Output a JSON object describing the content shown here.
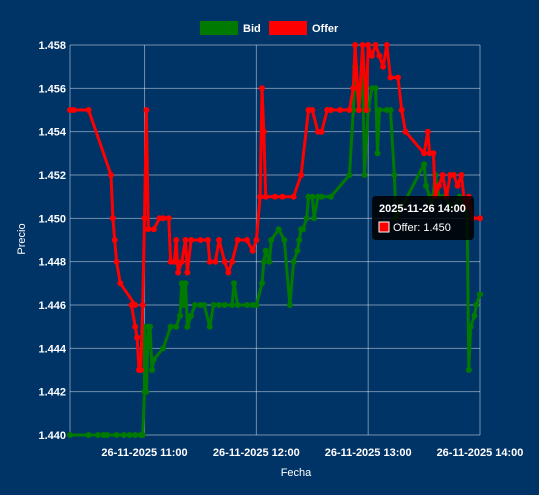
{
  "chart_data": {
    "type": "line",
    "title": "",
    "xlabel": "Fecha",
    "ylabel": "Precio",
    "ylim": [
      1.44,
      1.458
    ],
    "xlim": [
      "2025-11-26 10:20",
      "2025-11-26 14:00"
    ],
    "y_ticks": [
      "1.440",
      "1.442",
      "1.444",
      "1.446",
      "1.448",
      "1.450",
      "1.452",
      "1.454",
      "1.456",
      "1.458"
    ],
    "x_ticks": [
      {
        "t": "2025-11-26 11:00",
        "label": "26-11-2025 11:00"
      },
      {
        "t": "2025-11-26 12:00",
        "label": "26-11-2025 12:00"
      },
      {
        "t": "2025-11-26 13:00",
        "label": "26-11-2025 13:00"
      },
      {
        "t": "2025-11-26 14:00",
        "label": "26-11-2025 14:00"
      }
    ],
    "grid": true,
    "legend_position": "top-center",
    "series": [
      {
        "name": "Bid",
        "color": "#007a00",
        "points": [
          [
            "2025-11-26 10:20",
            1.44
          ],
          [
            "2025-11-26 10:30",
            1.44
          ],
          [
            "2025-11-26 10:35",
            1.44
          ],
          [
            "2025-11-26 10:38",
            1.44
          ],
          [
            "2025-11-26 10:40",
            1.44
          ],
          [
            "2025-11-26 10:45",
            1.44
          ],
          [
            "2025-11-26 10:49",
            1.44
          ],
          [
            "2025-11-26 10:52",
            1.44
          ],
          [
            "2025-11-26 10:55",
            1.44
          ],
          [
            "2025-11-26 10:58",
            1.44
          ],
          [
            "2025-11-26 10:59",
            1.44
          ],
          [
            "2025-11-26 11:00",
            1.442
          ],
          [
            "2025-11-26 11:00",
            1.445
          ],
          [
            "2025-11-26 11:01",
            1.442
          ],
          [
            "2025-11-26 11:02",
            1.445
          ],
          [
            "2025-11-26 11:03",
            1.445
          ],
          [
            "2025-11-26 11:04",
            1.443
          ],
          [
            "2025-11-26 11:05",
            1.4435
          ],
          [
            "2025-11-26 11:10",
            1.444
          ],
          [
            "2025-11-26 11:14",
            1.445
          ],
          [
            "2025-11-26 11:17",
            1.445
          ],
          [
            "2025-11-26 11:19",
            1.4455
          ],
          [
            "2025-11-26 11:20",
            1.447
          ],
          [
            "2025-11-26 11:21",
            1.446
          ],
          [
            "2025-11-26 11:22",
            1.447
          ],
          [
            "2025-11-26 11:23",
            1.445
          ],
          [
            "2025-11-26 11:25",
            1.4455
          ],
          [
            "2025-11-26 11:27",
            1.446
          ],
          [
            "2025-11-26 11:30",
            1.446
          ],
          [
            "2025-11-26 11:32",
            1.446
          ],
          [
            "2025-11-26 11:35",
            1.445
          ],
          [
            "2025-11-26 11:37",
            1.446
          ],
          [
            "2025-11-26 11:40",
            1.446
          ],
          [
            "2025-11-26 11:43",
            1.446
          ],
          [
            "2025-11-26 11:47",
            1.446
          ],
          [
            "2025-11-26 11:48",
            1.447
          ],
          [
            "2025-11-26 11:50",
            1.446
          ],
          [
            "2025-11-26 11:55",
            1.446
          ],
          [
            "2025-11-26 11:58",
            1.446
          ],
          [
            "2025-11-26 12:00",
            1.446
          ],
          [
            "2025-11-26 12:03",
            1.447
          ],
          [
            "2025-11-26 12:04",
            1.448
          ],
          [
            "2025-11-26 12:05",
            1.4485
          ],
          [
            "2025-11-26 12:07",
            1.448
          ],
          [
            "2025-11-26 12:08",
            1.449
          ],
          [
            "2025-11-26 12:12",
            1.4495
          ],
          [
            "2025-11-26 12:15",
            1.449
          ],
          [
            "2025-11-26 12:18",
            1.446
          ],
          [
            "2025-11-26 12:20",
            1.448
          ],
          [
            "2025-11-26 12:22",
            1.4485
          ],
          [
            "2025-11-26 12:23",
            1.449
          ],
          [
            "2025-11-26 12:24",
            1.4495
          ],
          [
            "2025-11-26 12:25",
            1.4495
          ],
          [
            "2025-11-26 12:27",
            1.45
          ],
          [
            "2025-11-26 12:28",
            1.451
          ],
          [
            "2025-11-26 12:30",
            1.451
          ],
          [
            "2025-11-26 12:31",
            1.45
          ],
          [
            "2025-11-26 12:33",
            1.451
          ],
          [
            "2025-11-26 12:35",
            1.451
          ],
          [
            "2025-11-26 12:40",
            1.451
          ],
          [
            "2025-11-26 12:50",
            1.452
          ],
          [
            "2025-11-26 12:52",
            1.455
          ],
          [
            "2025-11-26 12:53",
            1.457
          ],
          [
            "2025-11-26 12:55",
            1.455
          ],
          [
            "2025-11-26 12:57",
            1.457
          ],
          [
            "2025-11-26 12:58",
            1.452
          ],
          [
            "2025-11-26 13:00",
            1.455
          ],
          [
            "2025-11-26 13:02",
            1.456
          ],
          [
            "2025-11-26 13:04",
            1.456
          ],
          [
            "2025-11-26 13:05",
            1.453
          ],
          [
            "2025-11-26 13:06",
            1.455
          ],
          [
            "2025-11-26 13:10",
            1.455
          ],
          [
            "2025-11-26 13:12",
            1.455
          ],
          [
            "2025-11-26 13:14",
            1.452
          ],
          [
            "2025-11-26 13:15",
            1.45
          ],
          [
            "2025-11-26 13:30",
            1.4525
          ],
          [
            "2025-11-26 13:31",
            1.4515
          ],
          [
            "2025-11-26 13:33",
            1.451
          ],
          [
            "2025-11-26 13:34",
            1.4505
          ],
          [
            "2025-11-26 13:36",
            1.452
          ],
          [
            "2025-11-26 13:38",
            1.451
          ],
          [
            "2025-11-26 13:41",
            1.451
          ],
          [
            "2025-11-26 13:45",
            1.4505
          ],
          [
            "2025-11-26 13:49",
            1.451
          ],
          [
            "2025-11-26 13:51",
            1.4505
          ],
          [
            "2025-11-26 13:53",
            1.4505
          ],
          [
            "2025-11-26 13:54",
            1.443
          ],
          [
            "2025-11-26 13:55",
            1.445
          ],
          [
            "2025-11-26 13:57",
            1.4455
          ],
          [
            "2025-11-26 13:58",
            1.446
          ],
          [
            "2025-11-26 14:00",
            1.4465
          ]
        ]
      },
      {
        "name": "Offer",
        "color": "#ff0000",
        "points": [
          [
            "2025-11-26 10:20",
            1.455
          ],
          [
            "2025-11-26 10:22",
            1.455
          ],
          [
            "2025-11-26 10:30",
            1.455
          ],
          [
            "2025-11-26 10:42",
            1.452
          ],
          [
            "2025-11-26 10:43",
            1.45
          ],
          [
            "2025-11-26 10:44",
            1.449
          ],
          [
            "2025-11-26 10:45",
            1.448
          ],
          [
            "2025-11-26 10:47",
            1.447
          ],
          [
            "2025-11-26 10:55",
            1.446
          ],
          [
            "2025-11-26 10:53",
            1.446
          ],
          [
            "2025-11-26 10:55",
            1.445
          ],
          [
            "2025-11-26 10:56",
            1.4445
          ],
          [
            "2025-11-26 10:57",
            1.443
          ],
          [
            "2025-11-26 10:58",
            1.443
          ],
          [
            "2025-11-26 10:59",
            1.446
          ],
          [
            "2025-11-26 11:00",
            1.45
          ],
          [
            "2025-11-26 11:01",
            1.455
          ],
          [
            "2025-11-26 11:02",
            1.4495
          ],
          [
            "2025-11-26 11:05",
            1.4495
          ],
          [
            "2025-11-26 11:08",
            1.45
          ],
          [
            "2025-11-26 11:10",
            1.45
          ],
          [
            "2025-11-26 11:13",
            1.45
          ],
          [
            "2025-11-26 11:14",
            1.448
          ],
          [
            "2025-11-26 11:16",
            1.448
          ],
          [
            "2025-11-26 11:17",
            1.449
          ],
          [
            "2025-11-26 11:18",
            1.4475
          ],
          [
            "2025-11-26 11:20",
            1.448
          ],
          [
            "2025-11-26 11:22",
            1.449
          ],
          [
            "2025-11-26 11:23",
            1.4475
          ],
          [
            "2025-11-26 11:25",
            1.449
          ],
          [
            "2025-11-26 11:30",
            1.449
          ],
          [
            "2025-11-26 11:34",
            1.449
          ],
          [
            "2025-11-26 11:35",
            1.448
          ],
          [
            "2025-11-26 11:38",
            1.448
          ],
          [
            "2025-11-26 11:40",
            1.449
          ],
          [
            "2025-11-26 11:43",
            1.448
          ],
          [
            "2025-11-26 11:45",
            1.4475
          ],
          [
            "2025-11-26 11:47",
            1.448
          ],
          [
            "2025-11-26 11:50",
            1.449
          ],
          [
            "2025-11-26 11:55",
            1.449
          ],
          [
            "2025-11-26 11:58",
            1.4485
          ],
          [
            "2025-11-26 12:00",
            1.449
          ],
          [
            "2025-11-26 12:02",
            1.451
          ],
          [
            "2025-11-26 12:03",
            1.456
          ],
          [
            "2025-11-26 12:04",
            1.454
          ],
          [
            "2025-11-26 12:05",
            1.451
          ],
          [
            "2025-11-26 12:10",
            1.451
          ],
          [
            "2025-11-26 12:14",
            1.451
          ],
          [
            "2025-11-26 12:20",
            1.451
          ],
          [
            "2025-11-26 12:24",
            1.452
          ],
          [
            "2025-11-26 12:28",
            1.455
          ],
          [
            "2025-11-26 12:30",
            1.455
          ],
          [
            "2025-11-26 12:33",
            1.454
          ],
          [
            "2025-11-26 12:35",
            1.454
          ],
          [
            "2025-11-26 12:38",
            1.455
          ],
          [
            "2025-11-26 12:40",
            1.455
          ],
          [
            "2025-11-26 12:45",
            1.455
          ],
          [
            "2025-11-26 12:50",
            1.455
          ],
          [
            "2025-11-26 12:52",
            1.456
          ],
          [
            "2025-11-26 12:53",
            1.458
          ],
          [
            "2025-11-26 12:55",
            1.455
          ],
          [
            "2025-11-26 12:57",
            1.458
          ],
          [
            "2025-11-26 12:59",
            1.455
          ],
          [
            "2025-11-26 13:00",
            1.458
          ],
          [
            "2025-11-26 13:02",
            1.4575
          ],
          [
            "2025-11-26 13:04",
            1.458
          ],
          [
            "2025-11-26 13:06",
            1.4575
          ],
          [
            "2025-11-26 13:08",
            1.457
          ],
          [
            "2025-11-26 13:10",
            1.458
          ],
          [
            "2025-11-26 13:12",
            1.4565
          ],
          [
            "2025-11-26 13:16",
            1.4565
          ],
          [
            "2025-11-26 13:18",
            1.455
          ],
          [
            "2025-11-26 13:20",
            1.454
          ],
          [
            "2025-11-26 13:30",
            1.453
          ],
          [
            "2025-11-26 13:32",
            1.454
          ],
          [
            "2025-11-26 13:33",
            1.453
          ],
          [
            "2025-11-26 13:35",
            1.453
          ],
          [
            "2025-11-26 13:36",
            1.451
          ],
          [
            "2025-11-26 13:38",
            1.4515
          ],
          [
            "2025-11-26 13:40",
            1.452
          ],
          [
            "2025-11-26 13:42",
            1.451
          ],
          [
            "2025-11-26 13:44",
            1.452
          ],
          [
            "2025-11-26 13:46",
            1.452
          ],
          [
            "2025-11-26 13:48",
            1.4515
          ],
          [
            "2025-11-26 13:50",
            1.452
          ],
          [
            "2025-11-26 13:52",
            1.4505
          ],
          [
            "2025-11-26 13:54",
            1.451
          ],
          [
            "2025-11-26 13:56",
            1.45
          ],
          [
            "2025-11-26 14:00",
            1.45
          ]
        ]
      }
    ],
    "tooltip": {
      "title": "2025-11-26 14:00",
      "label": "Offer: 1.450"
    }
  }
}
